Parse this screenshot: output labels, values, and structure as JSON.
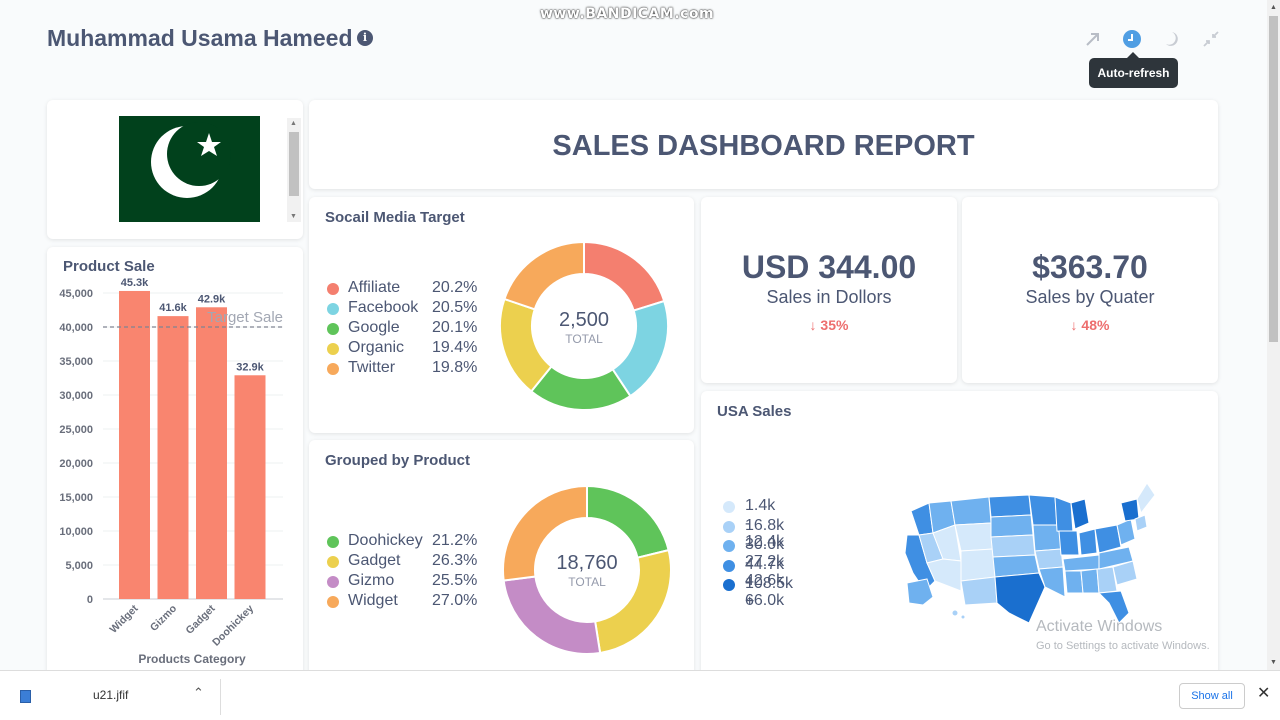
{
  "watermark": "www.BANDICAM.com",
  "header": {
    "title": "Muhammad Usama Hameed",
    "info_glyph": "i",
    "tooltip": "Auto-refresh"
  },
  "banner": {
    "title": "SALES DASHBOARD REPORT"
  },
  "product_sale": {
    "title": "Product Sale",
    "chart_data": {
      "type": "bar",
      "title": "Product Sale",
      "xlabel": "Products Category",
      "ylabel": "",
      "categories": [
        "Widget",
        "Gizmo",
        "Gadget",
        "Doohickey"
      ],
      "values": [
        45300,
        41600,
        42900,
        32900
      ],
      "data_labels": [
        "45.3k",
        "41.6k",
        "42.9k",
        "32.9k"
      ],
      "y_ticks": [
        0,
        5000,
        10000,
        15000,
        20000,
        25000,
        30000,
        35000,
        40000,
        45000
      ],
      "y_tick_labels": [
        "0",
        "5,000",
        "10,000",
        "15,000",
        "20,000",
        "25,000",
        "30,000",
        "35,000",
        "40,000",
        "45,000"
      ],
      "ylim": [
        0,
        45000
      ],
      "goal_value": 40000,
      "goal_label": "Target Sale",
      "color": "#f9856f"
    }
  },
  "social": {
    "title": "Socail Media Target",
    "total": "2,500",
    "total_label": "TOTAL",
    "chart_data": {
      "type": "pie",
      "categories": [
        "Affiliate",
        "Facebook",
        "Google",
        "Organic",
        "Twitter"
      ],
      "values": [
        20.2,
        20.5,
        20.1,
        19.4,
        19.8
      ],
      "labels": [
        "20.2%",
        "20.5%",
        "20.1%",
        "19.4%",
        "19.8%"
      ],
      "colors": [
        "#f47f6f",
        "#7dd4e2",
        "#5fc45a",
        "#ecd04e",
        "#f7a95b"
      ]
    }
  },
  "grouped": {
    "title": "Grouped by Product",
    "total": "18,760",
    "total_label": "TOTAL",
    "chart_data": {
      "type": "pie",
      "categories": [
        "Doohickey",
        "Gadget",
        "Gizmo",
        "Widget"
      ],
      "values": [
        21.2,
        26.3,
        25.5,
        27.0
      ],
      "labels": [
        "21.2%",
        "26.3%",
        "25.5%",
        "27.0%"
      ],
      "colors": [
        "#5fc45a",
        "#ecd04e",
        "#c48cc6",
        "#f7a95b"
      ]
    }
  },
  "kpis": [
    {
      "value": "USD 344.00",
      "label": "Sales in Dollors",
      "change": "↓ 35%"
    },
    {
      "value": "$363.70",
      "label": "Sales by Quater",
      "change": "↓ 48%"
    }
  ],
  "usa": {
    "title": "USA Sales",
    "legend": [
      {
        "label": "1.4k - 12.4k",
        "color": "#d5e9fb"
      },
      {
        "label": "16.8k - 27.2k",
        "color": "#a9d1f7"
      },
      {
        "label": "30.0k - 42.6k",
        "color": "#6fb1ef"
      },
      {
        "label": "44.7k - 66.0k",
        "color": "#3f8fe3"
      },
      {
        "label": "108.5k +",
        "color": "#1a6fcf"
      }
    ]
  },
  "activate": {
    "line1": "Activate Windows",
    "line2": "Go to Settings to activate Windows."
  },
  "download": {
    "file_name": "u21.jfif",
    "show_all": "Show all"
  }
}
